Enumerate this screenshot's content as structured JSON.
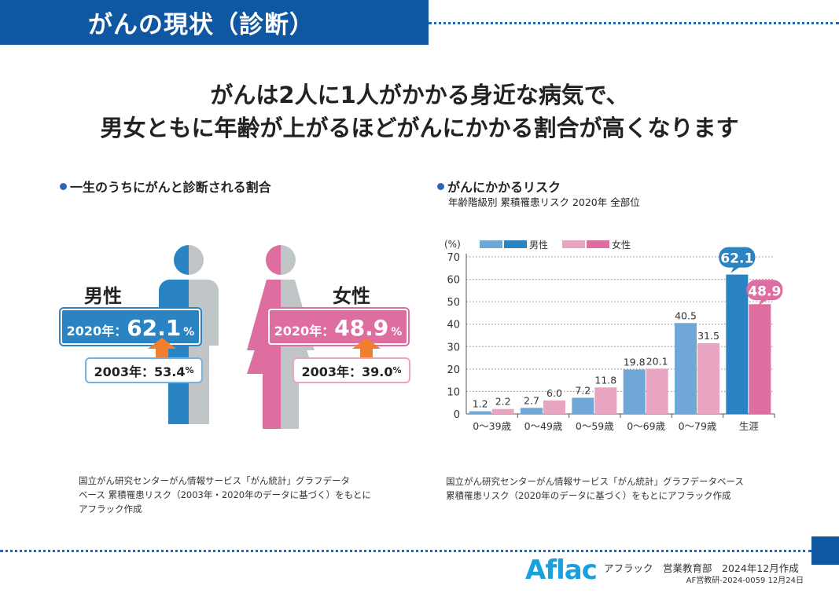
{
  "header": {
    "title": "がんの現状（診断）"
  },
  "headline": {
    "line1": "がんは2人に1人がかかる身近な病気で、",
    "line2": "男女ともに年齢が上がるほどがんにかかる割合が高くなります"
  },
  "left": {
    "section_title": "一生のうちにがんと診断される割合",
    "male": {
      "label": "男性",
      "year_2020": "2020年：",
      "value_2020": "62.1",
      "unit": "%",
      "text_2003": "2003年：53.4",
      "unit_small": "%"
    },
    "female": {
      "label": "女性",
      "year_2020": "2020年：",
      "value_2020": "48.9",
      "unit": "%",
      "text_2003": "2003年：39.0",
      "unit_small": "%"
    },
    "source": [
      "国立がん研究センターがん情報サービス「がん統計」グラフデータ",
      "ベース 累積罹患リスク（2003年・2020年のデータに基づく）をもとに",
      "アフラック作成"
    ]
  },
  "right": {
    "section_title": "がんにかかるリスク",
    "subtitle": "年齢階級別 累積罹患リスク 2020年 全部位",
    "source": [
      "国立がん研究センターがん情報サービス「がん統計」グラフデータベース",
      "累積罹患リスク（2020年のデータに基づく）をもとにアフラック作成"
    ]
  },
  "chart_data": {
    "type": "bar",
    "ylabel": "(%)",
    "ylim": [
      0,
      70
    ],
    "yticks": [
      0,
      10,
      20,
      30,
      40,
      50,
      60,
      70
    ],
    "grid": true,
    "legend": "top-left",
    "categories": [
      "0〜39歳",
      "0〜49歳",
      "0〜59歳",
      "0〜69歳",
      "0〜79歳",
      "生涯"
    ],
    "series": [
      {
        "name": "男性",
        "values": [
          1.2,
          2.7,
          7.2,
          19.8,
          40.5,
          62.1
        ],
        "color": "#6fa8d6",
        "highlight": "#2a83c2"
      },
      {
        "name": "女性",
        "values": [
          2.2,
          6.0,
          11.8,
          20.1,
          31.5,
          48.9
        ],
        "color": "#e8a5c2",
        "highlight": "#de6da0"
      }
    ]
  },
  "footer": {
    "logo": "Aflac",
    "dept": "アフラック　営業教育部　2024年12月作成",
    "code": "AF営教研-2024-0059 12月24日"
  }
}
